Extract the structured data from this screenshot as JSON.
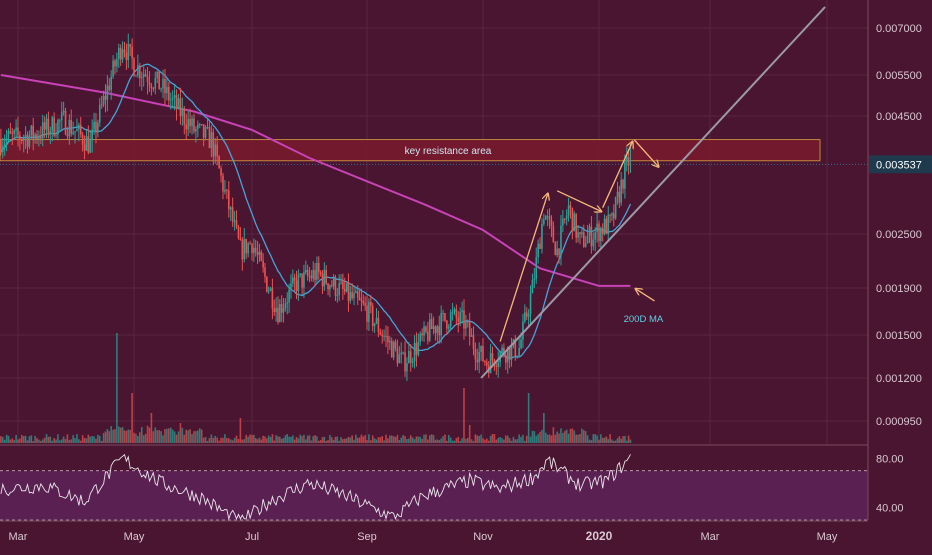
{
  "chart_data": [
    {
      "type": "candlestick",
      "title": "",
      "x_axis": {
        "labels": [
          "Mar",
          "May",
          "Jul",
          "Sep",
          "Nov",
          "2020",
          "Mar",
          "May"
        ],
        "emphasized": "2020"
      },
      "y_axis": {
        "scale": "log",
        "labels": [
          "0.007000",
          "0.005500",
          "0.004500",
          "0.002500",
          "0.001900",
          "0.001500",
          "0.001200",
          "0.000950"
        ],
        "ylim": [
          0.00088,
          0.0078
        ]
      },
      "price_path": [
        {
          "date": "2019-02-20",
          "price": 0.004
        },
        {
          "date": "2019-03-10",
          "price": 0.0041
        },
        {
          "date": "2019-03-25",
          "price": 0.0044
        },
        {
          "date": "2019-04-08",
          "price": 0.0039
        },
        {
          "date": "2019-04-18",
          "price": 0.0053
        },
        {
          "date": "2019-04-25",
          "price": 0.0065
        },
        {
          "date": "2019-05-01",
          "price": 0.0058
        },
        {
          "date": "2019-05-15",
          "price": 0.0052
        },
        {
          "date": "2019-06-01",
          "price": 0.0042
        },
        {
          "date": "2019-06-10",
          "price": 0.004
        },
        {
          "date": "2019-06-15",
          "price": 0.0033
        },
        {
          "date": "2019-06-25",
          "price": 0.0023
        },
        {
          "date": "2019-07-01",
          "price": 0.0024
        },
        {
          "date": "2019-07-08",
          "price": 0.002
        },
        {
          "date": "2019-07-15",
          "price": 0.0017
        },
        {
          "date": "2019-07-25",
          "price": 0.00195
        },
        {
          "date": "2019-08-05",
          "price": 0.00205
        },
        {
          "date": "2019-08-20",
          "price": 0.00185
        },
        {
          "date": "2019-09-01",
          "price": 0.0017
        },
        {
          "date": "2019-09-12",
          "price": 0.00145
        },
        {
          "date": "2019-09-20",
          "price": 0.0013
        },
        {
          "date": "2019-10-05",
          "price": 0.00155
        },
        {
          "date": "2019-10-15",
          "price": 0.00165
        },
        {
          "date": "2019-10-22",
          "price": 0.0016
        },
        {
          "date": "2019-10-28",
          "price": 0.0014
        },
        {
          "date": "2019-11-03",
          "price": 0.0013
        },
        {
          "date": "2019-11-12",
          "price": 0.00138
        },
        {
          "date": "2019-11-20",
          "price": 0.0014
        },
        {
          "date": "2019-11-27",
          "price": 0.0019
        },
        {
          "date": "2019-12-03",
          "price": 0.0028
        },
        {
          "date": "2019-12-10",
          "price": 0.0023
        },
        {
          "date": "2019-12-16",
          "price": 0.00285
        },
        {
          "date": "2019-12-22",
          "price": 0.0024
        },
        {
          "date": "2020-01-01",
          "price": 0.00255
        },
        {
          "date": "2020-01-08",
          "price": 0.00265
        },
        {
          "date": "2020-01-14",
          "price": 0.0033
        },
        {
          "date": "2020-01-18",
          "price": 0.0037
        }
      ],
      "ma_200_path": [
        {
          "date": "2019-02-20",
          "price": 0.0055
        },
        {
          "date": "2019-04-15",
          "price": 0.00505
        },
        {
          "date": "2019-06-01",
          "price": 0.0046
        },
        {
          "date": "2019-07-01",
          "price": 0.0042
        },
        {
          "date": "2019-08-01",
          "price": 0.00365
        },
        {
          "date": "2019-09-01",
          "price": 0.00325
        },
        {
          "date": "2019-10-01",
          "price": 0.0029
        },
        {
          "date": "2019-11-01",
          "price": 0.00255
        },
        {
          "date": "2019-12-01",
          "price": 0.0021
        },
        {
          "date": "2020-01-01",
          "price": 0.00192
        },
        {
          "date": "2020-01-18",
          "price": 0.00192
        }
      ],
      "resistance_zone": {
        "label": "key resistance area",
        "from": 0.0036,
        "to": 0.004
      },
      "trendline": {
        "from": {
          "date": "2019-10-31",
          "price": 0.0012
        },
        "to": {
          "date": "2020-04-30",
          "price": 0.0078
        }
      },
      "current_price": "0.003537",
      "annotations": [
        "key resistance area",
        "200D MA"
      ],
      "colors": {
        "background": "#4a1530",
        "up": "#26a69a",
        "down": "#ef5350",
        "ma_200": "#c842b8",
        "ma_short": "#42a5d9",
        "arrow": "#f5b87a",
        "trendline": "#9a9aa6",
        "resistance_fill": "#7a1a2e",
        "resistance_border": "#d9a441",
        "current_price_label": "#1e3a4c"
      }
    },
    {
      "type": "line",
      "title": "",
      "y_axis": {
        "labels": [
          "80.00",
          "40.00"
        ],
        "ylim": [
          30,
          90
        ]
      },
      "reference_lines": [
        70,
        30
      ],
      "series": [
        {
          "values": [
            {
              "date": "2019-02-20",
              "rsi": 55
            },
            {
              "date": "2019-03-15",
              "rsi": 58
            },
            {
              "date": "2019-04-05",
              "rsi": 45
            },
            {
              "date": "2019-04-25",
              "rsi": 80
            },
            {
              "date": "2019-05-15",
              "rsi": 60
            },
            {
              "date": "2019-06-05",
              "rsi": 48
            },
            {
              "date": "2019-06-25",
              "rsi": 28
            },
            {
              "date": "2019-07-10",
              "rsi": 45
            },
            {
              "date": "2019-08-01",
              "rsi": 60
            },
            {
              "date": "2019-08-20",
              "rsi": 50
            },
            {
              "date": "2019-09-15",
              "rsi": 32
            },
            {
              "date": "2019-10-01",
              "rsi": 50
            },
            {
              "date": "2019-10-25",
              "rsi": 62
            },
            {
              "date": "2019-11-10",
              "rsi": 55
            },
            {
              "date": "2019-11-28",
              "rsi": 65
            },
            {
              "date": "2019-12-05",
              "rsi": 78
            },
            {
              "date": "2019-12-22",
              "rsi": 58
            },
            {
              "date": "2020-01-05",
              "rsi": 62
            },
            {
              "date": "2020-01-18",
              "rsi": 80
            }
          ]
        }
      ]
    }
  ]
}
